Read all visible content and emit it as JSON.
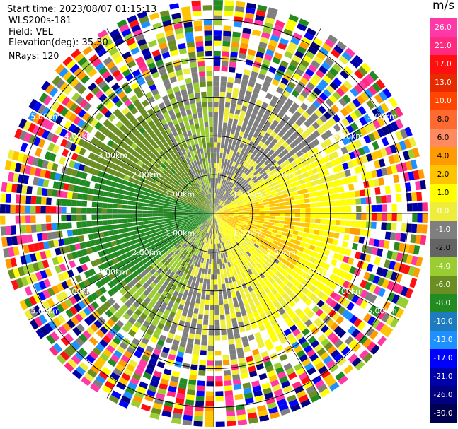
{
  "header": {
    "start_time": "Start time: 2023/08/07 01:15:13",
    "instrument": "WLS200s-181",
    "field": "Field: VEL",
    "elevation": "Elevation(deg): 35.30",
    "nrays": "NRays: 120"
  },
  "colorbar": {
    "unit": "m/s",
    "ticks": [
      "26.0",
      "21.0",
      "17.0",
      "13.0",
      "10.0",
      "8.0",
      "6.0",
      "4.0",
      "2.0",
      "1.0",
      "0.0",
      "-1.0",
      "-2.0",
      "-4.0",
      "-6.0",
      "-8.0",
      "-10.0",
      "-13.0",
      "-17.0",
      "-21.0",
      "-26.0",
      "-30.0"
    ],
    "colors": [
      "#f0f0a0",
      "#ff3aa8",
      "#ff2a80",
      "#ff1010",
      "#e82a00",
      "#ff6a30",
      "#ff8a60",
      "#ffa0a0",
      "#ff9a00",
      "#ffc400",
      "#ffff00",
      "#e8e870",
      "#7f7f7f",
      "#646464",
      "#9acd32",
      "#6b8e23",
      "#228b22",
      "#1f7bbf",
      "#1e90ff",
      "#0000ff",
      "#0000aa",
      "#000080",
      "#000060",
      "#000040"
    ]
  },
  "chart_data": {
    "type": "ppi",
    "title": "",
    "field": "VEL",
    "nrays": 120,
    "max_range_km": 5.5,
    "range_rings_km": [
      1.0,
      2.0,
      3.0,
      4.0,
      5.0
    ],
    "range_ring_labels": [
      "1.00km",
      "2.00km",
      "3.00km",
      "4.00km",
      "5.00km"
    ],
    "sectors": [
      {
        "azimuth_deg": [
          0,
          60
        ],
        "dominant_velocity": 0.0,
        "description": "gray/yellow"
      },
      {
        "azimuth_deg": [
          60,
          150
        ],
        "dominant_velocity": 2.5
      },
      {
        "azimuth_deg": [
          90,
          120
        ],
        "dominant_velocity": 4.5
      },
      {
        "azimuth_deg": [
          150,
          210
        ],
        "dominant_velocity": 1.0
      },
      {
        "azimuth_deg": [
          210,
          300
        ],
        "dominant_velocity": -5.0
      },
      {
        "azimuth_deg": [
          300,
          360
        ],
        "dominant_velocity": -2.0
      }
    ],
    "noise_range_km": [
      3.8,
      5.5
    ]
  }
}
